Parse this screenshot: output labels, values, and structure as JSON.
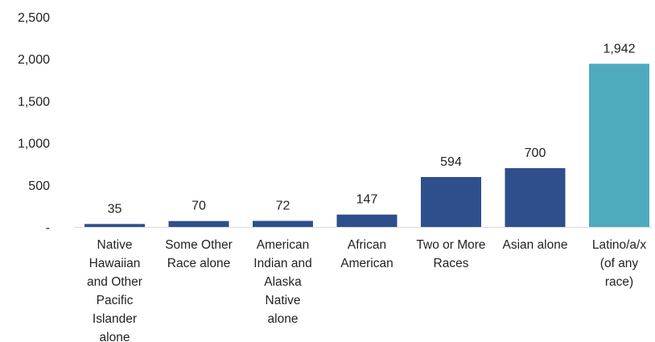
{
  "chart_data": {
    "type": "bar",
    "title": "",
    "xlabel": "",
    "ylabel": "",
    "ylim": [
      0,
      2500
    ],
    "yticks": [
      0,
      500,
      1000,
      1500,
      2000,
      2500
    ],
    "ytick_labels": [
      "-",
      "500",
      "1,000",
      "1,500",
      "2,000",
      "2,500"
    ],
    "grid": false,
    "categories": [
      [
        "Native",
        "Hawaiian",
        "and Other",
        "Pacific",
        "Islander",
        "alone"
      ],
      [
        "Some Other",
        "Race alone"
      ],
      [
        "American",
        "Indian and",
        "Alaska",
        "Native",
        "alone"
      ],
      [
        "African",
        "American"
      ],
      [
        "Two or More",
        "Races"
      ],
      [
        "Asian alone"
      ],
      [
        "Latino/a/x",
        "(of any",
        "race)"
      ]
    ],
    "values": [
      35,
      70,
      72,
      147,
      594,
      700,
      1942
    ],
    "value_labels": [
      "35",
      "70",
      "72",
      "147",
      "594",
      "700",
      "1,942"
    ],
    "colors": [
      "#2e4f8c",
      "#2e4f8c",
      "#2e4f8c",
      "#2e4f8c",
      "#2e4f8c",
      "#2e4f8c",
      "#4eabbd"
    ]
  }
}
